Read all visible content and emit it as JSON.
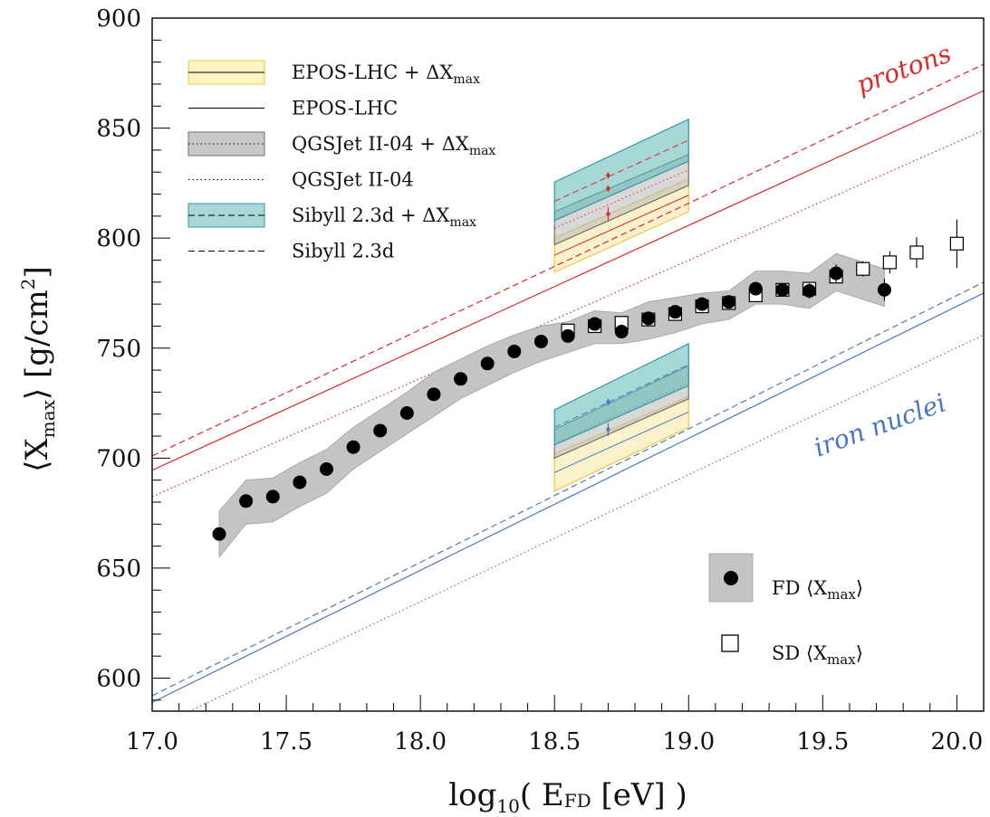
{
  "chart_data": {
    "type": "scatter",
    "xlabel": "log₁₀( E_FD [eV] )",
    "xlabel_main": "log",
    "xlabel_sub": "10",
    "xlabel_rest": "( E",
    "xlabel_sub2": "FD",
    "xlabel_tail": " [eV] )",
    "ylabel_open": "⟨X",
    "ylabel_sub": "max",
    "ylabel_close": "⟩ [g/cm",
    "ylabel_sup": "2",
    "ylabel_end": "]",
    "xlim": [
      17.0,
      20.1
    ],
    "ylim": [
      585,
      900
    ],
    "xticks": [
      17.0,
      17.5,
      18.0,
      18.5,
      19.0,
      19.5,
      20.0
    ],
    "xtick_labels": [
      "17.0",
      "17.5",
      "18.0",
      "18.5",
      "19.0",
      "19.5",
      "20.0"
    ],
    "yticks": [
      600,
      650,
      700,
      750,
      800,
      850,
      900
    ],
    "ytick_labels": [
      "600",
      "650",
      "700",
      "750",
      "800",
      "850",
      "900"
    ],
    "fd_points": {
      "x": [
        17.25,
        17.35,
        17.45,
        17.55,
        17.65,
        17.75,
        17.85,
        17.95,
        18.05,
        18.15,
        18.25,
        18.35,
        18.45,
        18.55,
        18.65,
        18.75,
        18.85,
        18.95,
        19.05,
        19.15,
        19.25,
        19.35,
        19.45,
        19.55,
        19.73
      ],
      "y": [
        665.5,
        680.5,
        682.5,
        689,
        695,
        705,
        712.5,
        720.5,
        729,
        736,
        743,
        748.5,
        753,
        755.5,
        761,
        757.5,
        763.5,
        766.5,
        770,
        771,
        777,
        776.5,
        776,
        784,
        776.5
      ],
      "err": [
        1.2,
        1.2,
        1.2,
        1.2,
        1.2,
        1.2,
        1.2,
        1.2,
        1.2,
        1.2,
        1.2,
        1.2,
        1.2,
        1.2,
        1.2,
        1.2,
        1.2,
        1.5,
        1.5,
        2,
        3,
        3,
        3.5,
        4,
        5
      ]
    },
    "fd_syst_band": {
      "x": [
        17.25,
        17.35,
        17.45,
        17.55,
        17.65,
        17.75,
        17.85,
        17.95,
        18.05,
        18.15,
        18.25,
        18.35,
        18.45,
        18.55,
        18.65,
        18.75,
        18.85,
        18.95,
        19.05,
        19.15,
        19.25,
        19.35,
        19.45,
        19.55,
        19.73
      ],
      "upper": [
        676,
        690,
        691,
        698,
        704,
        714,
        722,
        730,
        739,
        745,
        751,
        756,
        760,
        762,
        767,
        766,
        771,
        773,
        775,
        776,
        785,
        785,
        784,
        793,
        786
      ],
      "lower": [
        655,
        670,
        671,
        678,
        684,
        695,
        703,
        711,
        719,
        727,
        733,
        739,
        744,
        748,
        752,
        752,
        754,
        757,
        761,
        763,
        770,
        770,
        768,
        776,
        769
      ]
    },
    "sd_points": {
      "x": [
        18.55,
        18.65,
        18.75,
        18.85,
        18.95,
        19.05,
        19.15,
        19.25,
        19.35,
        19.45,
        19.55,
        19.65,
        19.75,
        19.85,
        20.0
      ],
      "y": [
        758,
        760,
        761.5,
        763,
        765.5,
        769,
        770.5,
        774,
        776.5,
        777,
        782.5,
        786,
        789,
        793.5,
        797.5
      ],
      "err": [
        1.5,
        1.5,
        1.5,
        1.5,
        1.5,
        1.5,
        1.5,
        2,
        2,
        2.5,
        3,
        3.5,
        5,
        7,
        11
      ]
    },
    "proton_lines": [
      {
        "model": "EPOS-LHC",
        "style": "solid",
        "x": [
          17.0,
          20.1
        ],
        "y": [
          694.5,
          867
        ]
      },
      {
        "model": "QGSJet II-04",
        "style": "dotted",
        "x": [
          17.0,
          20.1
        ],
        "y": [
          682.5,
          849
        ]
      },
      {
        "model": "Sibyll 2.3d",
        "style": "dashed",
        "x": [
          17.0,
          20.1
        ],
        "y": [
          701,
          879
        ]
      }
    ],
    "iron_lines": [
      {
        "model": "EPOS-LHC",
        "style": "solid",
        "x": [
          17.0,
          20.1
        ],
        "y": [
          589,
          775
        ]
      },
      {
        "model": "QGSJet II-04",
        "style": "dotted",
        "x": [
          17.0,
          20.1
        ],
        "y": [
          577,
          756
        ]
      },
      {
        "model": "Sibyll 2.3d",
        "style": "dashed",
        "x": [
          17.0,
          20.1
        ],
        "y": [
          592,
          780
        ]
      }
    ],
    "delta_xmax_boxes": [
      {
        "group": "protons",
        "x": [
          18.5,
          19.0
        ],
        "bands": [
          {
            "model": "EPOS-LHC",
            "color": "#f8e7a0",
            "edge": "#e8c84a",
            "top": [
              800,
              827
            ],
            "bottom": [
              784.5,
              812
            ]
          },
          {
            "model": "QGSJet II-04",
            "color": "#b8b8b8",
            "edge": "#707070",
            "top": [
              812,
              838
            ],
            "bottom": [
              797,
              824
            ]
          },
          {
            "model": "Sibyll 2.3d",
            "color": "#5fb8b8",
            "edge": "#2e9a9a",
            "top": [
              825.5,
              854
            ],
            "bottom": [
              808,
              835
            ]
          }
        ],
        "markers": [
          {
            "x": 18.7,
            "y": 811,
            "err": 3
          },
          {
            "x": 18.7,
            "y": 822.5,
            "err": 1.5
          },
          {
            "x": 18.7,
            "y": 828.5,
            "err": 1.5
          }
        ],
        "marker_color": "#d62c2c"
      },
      {
        "group": "iron",
        "x": [
          18.5,
          19.0
        ],
        "bands": [
          {
            "model": "EPOS-LHC",
            "color": "#f8e7a0",
            "edge": "#e8c84a",
            "top": [
              702,
              728
            ],
            "bottom": [
              685,
              714
            ]
          },
          {
            "model": "QGSJet II-04",
            "color": "#b8b8b8",
            "edge": "#707070",
            "top": [
              713,
              742
            ],
            "bottom": [
              700,
              727
            ]
          },
          {
            "model": "Sibyll 2.3d",
            "color": "#5fb8b8",
            "edge": "#2e9a9a",
            "top": [
              722,
              752
            ],
            "bottom": [
              706,
              733
            ]
          }
        ],
        "markers": [
          {
            "x": 18.7,
            "y": 713,
            "err": 3
          },
          {
            "x": 18.7,
            "y": 725.5,
            "err": 1.5
          }
        ],
        "marker_color": "#4a78c0"
      }
    ],
    "legend_models": [
      {
        "text": "EPOS-LHC  +  ΔX",
        "sub": "max",
        "swatch": "band",
        "fill": "#fdf3c4",
        "edge": "#e8c84a",
        "line": "solid"
      },
      {
        "text": "EPOS-LHC",
        "sub": "",
        "swatch": "line",
        "line": "solid"
      },
      {
        "text": "QGSJet II-04  +  ΔX",
        "sub": "max",
        "swatch": "band",
        "fill": "#c8c8c8",
        "edge": "#707070",
        "line": "dotted"
      },
      {
        "text": "QGSJet II-04",
        "sub": "",
        "swatch": "line",
        "line": "dotted"
      },
      {
        "text": "Sibyll 2.3d  +  ΔX",
        "sub": "max",
        "swatch": "band",
        "fill": "#a9d6d6",
        "edge": "#2e9a9a",
        "line": "dashed"
      },
      {
        "text": "Sibyll 2.3d",
        "sub": "",
        "swatch": "line",
        "line": "dashed"
      }
    ],
    "legend_data": [
      {
        "text_open": "FD ⟨X",
        "sub": "max",
        "text_close": "⟩"
      },
      {
        "text_open": "SD ⟨X",
        "sub": "max",
        "text_close": "⟩"
      }
    ],
    "annotations": {
      "protons": "protons",
      "iron": "iron nuclei",
      "proton_color": "#d62c2c",
      "iron_color": "#4a78c0"
    }
  }
}
